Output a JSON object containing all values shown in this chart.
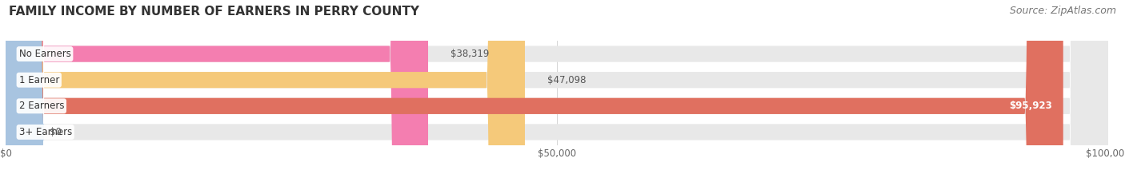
{
  "title": "FAMILY INCOME BY NUMBER OF EARNERS IN PERRY COUNTY",
  "source": "Source: ZipAtlas.com",
  "categories": [
    "No Earners",
    "1 Earner",
    "2 Earners",
    "3+ Earners"
  ],
  "values": [
    38319,
    47098,
    95923,
    0
  ],
  "bar_colors": [
    "#f47eb0",
    "#f5c97a",
    "#e07060",
    "#a8c4e0"
  ],
  "bar_bg_color": "#e8e8e8",
  "xlim": [
    0,
    100000
  ],
  "xticks": [
    0,
    50000,
    100000
  ],
  "xtick_labels": [
    "$0",
    "$50,000",
    "$100,000"
  ],
  "fig_bg_color": "#ffffff",
  "title_fontsize": 11,
  "source_fontsize": 9,
  "bar_height": 0.62,
  "value_labels": [
    "$38,319",
    "$47,098",
    "$95,923",
    "$0"
  ]
}
